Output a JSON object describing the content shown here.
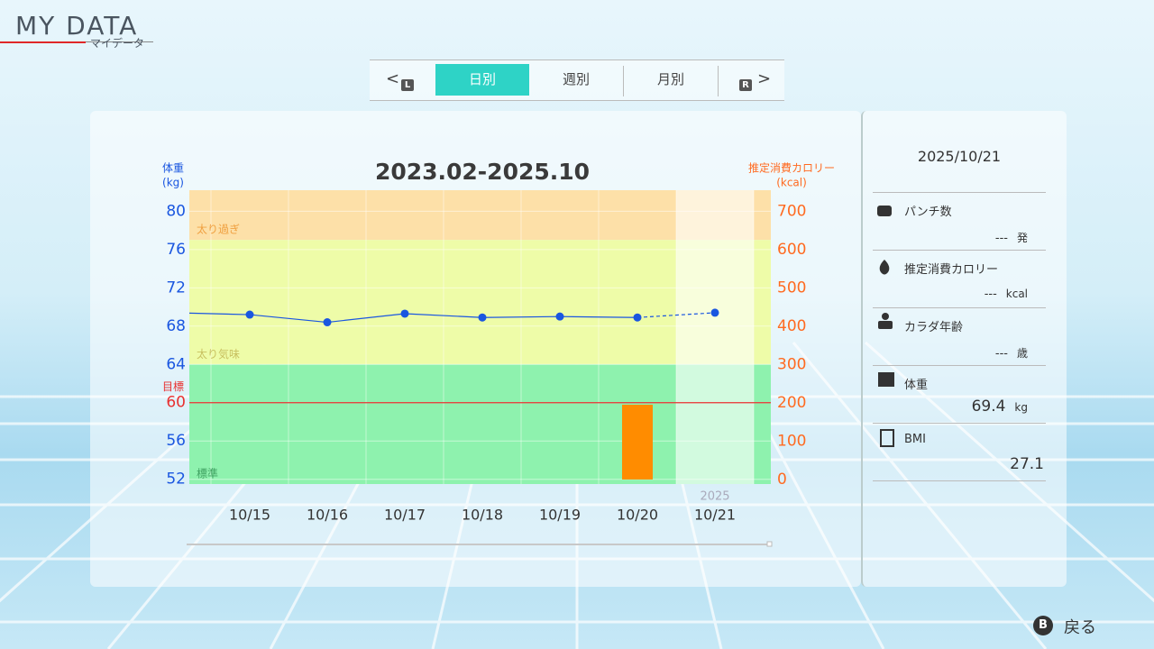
{
  "header": {
    "title": "MY DATA",
    "subtitle": "マイデータ"
  },
  "tabs": {
    "prev_button": "L",
    "items": [
      "日別",
      "週別",
      "月別"
    ],
    "active": 0,
    "next_button": "R"
  },
  "chart_data": {
    "type": "combo",
    "title": "2023.02-2025.10",
    "y_label": [
      "体重",
      "(kg)"
    ],
    "y2_label": [
      "推定消費カロリー",
      "(kcal)"
    ],
    "categories": [
      null,
      "10/15",
      "10/16",
      "10/17",
      "10/18",
      "10/19",
      "10/20",
      "10/21"
    ],
    "series": [
      {
        "name": "体重",
        "color": "#1a56e0",
        "values": [
          69.4,
          69.2,
          68.4,
          69.3,
          68.9,
          69.0,
          68.9,
          69.4
        ]
      },
      {
        "name": "推定消費カロリー",
        "color": "#ff8c00",
        "axis": "y2",
        "values": [
          null,
          null,
          null,
          null,
          null,
          null,
          195,
          null
        ]
      }
    ],
    "projected_last": true,
    "ylim": [
      51.5,
      82.2
    ],
    "yticks": [
      52,
      56,
      60,
      64,
      68,
      72,
      76,
      80
    ],
    "y2lim": [
      -12,
      755
    ],
    "y2ticks": [
      0,
      100,
      200,
      300,
      400,
      500,
      600,
      700
    ],
    "bands": [
      {
        "label": "太り過ぎ",
        "from": 77,
        "color": "#fde0a8",
        "text_color": "#f0a040"
      },
      {
        "label": "太り気味",
        "from": 64,
        "to": 77,
        "color": "#eefca8",
        "text_color": "#c8c060"
      },
      {
        "label": "標準",
        "to": 64,
        "color": "#8ef2ae",
        "text_color": "#3ea060"
      }
    ],
    "target": {
      "label": "目標",
      "value": 60,
      "color": "#e83030"
    },
    "highlight": {
      "category_index": 7,
      "label": "2025"
    }
  },
  "side_panel": {
    "date": "2025/10/21",
    "items": [
      {
        "label": "パンチ数",
        "value": "---",
        "unit": "発"
      },
      {
        "label": "推定消費カロリー",
        "value": "---",
        "unit": "kcal"
      },
      {
        "label": "カラダ年齢",
        "value": "---",
        "unit": "歳"
      },
      {
        "label": "体重",
        "value": 69.4,
        "unit": "kg"
      },
      {
        "label": "BMI",
        "value": 27.1
      }
    ]
  },
  "footer": {
    "button": "B",
    "label": "戻る"
  }
}
